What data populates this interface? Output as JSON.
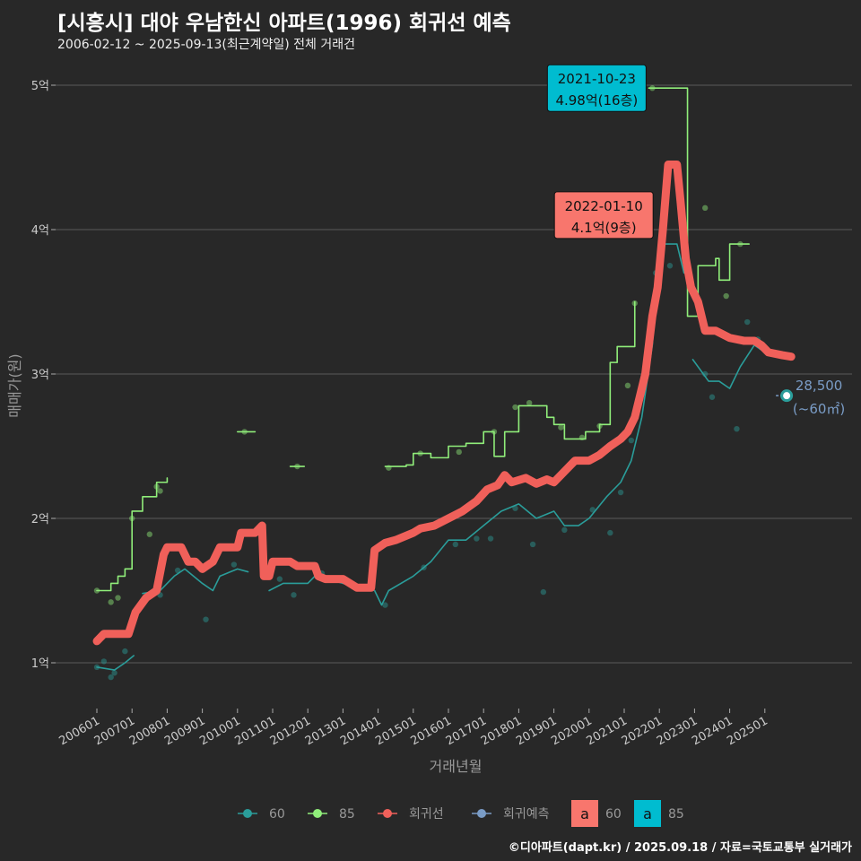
{
  "title": "[시흥시] 대야 우남한신 아파트(1996) 회귀선 예측",
  "subtitle": "2006-02-12 ~ 2025-09-13(최근계약일) 전체 거래건",
  "footer": "©디아파트(dapt.kr) / 2025.09.18 / 자료=국토교통부 실거래가",
  "colors": {
    "s60": "#2a9d9a",
    "s85": "#90ee7a",
    "reg": "#f0605a",
    "pred": "#7a9cc6",
    "box85": "#00bcd0",
    "box60": "#f8766d"
  },
  "chart_data": {
    "type": "line",
    "xlabel": "거래년월",
    "ylabel": "매매가(원)",
    "xlim": [
      2005.5,
      2026.4
    ],
    "ylim": [
      7000,
      54000
    ],
    "y_ticks": [
      {
        "v": 10000,
        "label": "1억"
      },
      {
        "v": 20000,
        "label": "2억"
      },
      {
        "v": 30000,
        "label": "3억"
      },
      {
        "v": 40000,
        "label": "4억"
      },
      {
        "v": 50000,
        "label": "5억"
      }
    ],
    "x_ticks": [
      {
        "v": 2006,
        "label": "200601"
      },
      {
        "v": 2007,
        "label": "200701"
      },
      {
        "v": 2008,
        "label": "200801"
      },
      {
        "v": 2009,
        "label": "200901"
      },
      {
        "v": 2010,
        "label": "201001"
      },
      {
        "v": 2011,
        "label": "201101"
      },
      {
        "v": 2012,
        "label": "201201"
      },
      {
        "v": 2013,
        "label": "201301"
      },
      {
        "v": 2014,
        "label": "201401"
      },
      {
        "v": 2015,
        "label": "201501"
      },
      {
        "v": 2016,
        "label": "201601"
      },
      {
        "v": 2017,
        "label": "201701"
      },
      {
        "v": 2018,
        "label": "201801"
      },
      {
        "v": 2019,
        "label": "201901"
      },
      {
        "v": 2020,
        "label": "202001"
      },
      {
        "v": 2021,
        "label": "202101"
      },
      {
        "v": 2022,
        "label": "202201"
      },
      {
        "v": 2023,
        "label": "202301"
      },
      {
        "v": 2024,
        "label": "202401"
      },
      {
        "v": 2025,
        "label": "202501"
      }
    ],
    "series": [
      {
        "name": "60",
        "key": "s60",
        "segments": [
          [
            [
              2006.0,
              9700
            ],
            [
              2006.5,
              9500
            ],
            [
              2006.8,
              10000
            ],
            [
              2007.05,
              10500
            ]
          ],
          [
            [
              2007.3,
              14800
            ],
            [
              2007.8,
              15000
            ],
            [
              2008.2,
              16000
            ],
            [
              2008.5,
              16500
            ],
            [
              2009.0,
              15500
            ],
            [
              2009.3,
              15000
            ],
            [
              2009.5,
              16000
            ],
            [
              2010.0,
              16500
            ],
            [
              2010.3,
              16300
            ]
          ],
          [
            [
              2010.9,
              15000
            ],
            [
              2011.3,
              15500
            ],
            [
              2012.0,
              15500
            ],
            [
              2012.2,
              16000
            ],
            [
              2013.0,
              15500
            ],
            [
              2013.9,
              15000
            ],
            [
              2014.1,
              14000
            ],
            [
              2014.3,
              15000
            ],
            [
              2015.0,
              16000
            ],
            [
              2015.5,
              17000
            ],
            [
              2016.0,
              18500
            ],
            [
              2016.5,
              18500
            ],
            [
              2017.0,
              19500
            ],
            [
              2017.5,
              20500
            ],
            [
              2018.0,
              21000
            ],
            [
              2018.5,
              20000
            ],
            [
              2019.0,
              20500
            ],
            [
              2019.3,
              19500
            ],
            [
              2019.7,
              19500
            ],
            [
              2020.0,
              20000
            ],
            [
              2020.5,
              21500
            ],
            [
              2020.9,
              22500
            ],
            [
              2021.2,
              24000
            ],
            [
              2021.5,
              27000
            ],
            [
              2021.8,
              32000
            ],
            [
              2022.0,
              39000
            ],
            [
              2022.5,
              39000
            ],
            [
              2022.7,
              37000
            ]
          ],
          [
            [
              2022.95,
              31000
            ],
            [
              2023.4,
              29500
            ],
            [
              2023.7,
              29500
            ],
            [
              2024.0,
              29000
            ],
            [
              2024.3,
              30500
            ],
            [
              2024.7,
              32000
            ],
            [
              2025.0,
              31500
            ]
          ]
        ]
      },
      {
        "name": "85",
        "key": "s85",
        "step": true,
        "segments": [
          [
            [
              2006.0,
              15000
            ],
            [
              2006.4,
              15500
            ],
            [
              2006.6,
              16000
            ],
            [
              2006.8,
              16500
            ],
            [
              2007.0,
              20500
            ],
            [
              2007.3,
              21500
            ],
            [
              2007.7,
              22500
            ],
            [
              2008.0,
              22800
            ]
          ],
          [
            [
              2010.0,
              26000
            ],
            [
              2010.5,
              26000
            ]
          ],
          [
            [
              2011.5,
              23600
            ],
            [
              2011.9,
              23600
            ]
          ],
          [
            [
              2014.2,
              23600
            ],
            [
              2014.8,
              23700
            ],
            [
              2015.0,
              24500
            ],
            [
              2015.5,
              24200
            ],
            [
              2016.0,
              25000
            ],
            [
              2016.5,
              25200
            ],
            [
              2017.0,
              26000
            ],
            [
              2017.3,
              24300
            ],
            [
              2017.6,
              26000
            ],
            [
              2018.0,
              27800
            ],
            [
              2018.8,
              27000
            ],
            [
              2019.0,
              26500
            ],
            [
              2019.3,
              25500
            ],
            [
              2019.9,
              26000
            ],
            [
              2020.3,
              26500
            ],
            [
              2020.6,
              30800
            ],
            [
              2020.8,
              31900
            ],
            [
              2021.3,
              35000
            ]
          ],
          [
            [
              2021.7,
              49800
            ],
            [
              2022.75,
              49800
            ],
            [
              2022.8,
              34000
            ],
            [
              2023.1,
              37500
            ],
            [
              2023.6,
              38000
            ],
            [
              2023.7,
              36500
            ],
            [
              2024.0,
              39000
            ],
            [
              2024.55,
              39000
            ]
          ]
        ]
      },
      {
        "name": "회귀선",
        "key": "reg",
        "segments": [
          [
            [
              2006.0,
              11500
            ],
            [
              2006.2,
              12000
            ],
            [
              2006.9,
              12000
            ],
            [
              2007.1,
              13500
            ],
            [
              2007.4,
              14500
            ],
            [
              2007.7,
              15000
            ],
            [
              2007.9,
              17500
            ],
            [
              2008.0,
              18000
            ],
            [
              2008.4,
              18000
            ],
            [
              2008.6,
              17000
            ],
            [
              2008.8,
              17000
            ],
            [
              2009.0,
              16500
            ],
            [
              2009.3,
              17000
            ],
            [
              2009.5,
              18000
            ],
            [
              2010.0,
              18000
            ],
            [
              2010.1,
              19000
            ],
            [
              2010.5,
              19000
            ],
            [
              2010.7,
              19500
            ],
            [
              2010.75,
              16000
            ],
            [
              2010.9,
              16000
            ],
            [
              2011.0,
              17000
            ],
            [
              2011.5,
              17000
            ],
            [
              2011.7,
              16700
            ],
            [
              2012.2,
              16700
            ],
            [
              2012.3,
              16000
            ],
            [
              2012.5,
              15800
            ],
            [
              2013.0,
              15800
            ],
            [
              2013.2,
              15500
            ],
            [
              2013.4,
              15200
            ],
            [
              2013.8,
              15200
            ],
            [
              2013.9,
              17800
            ],
            [
              2014.2,
              18300
            ],
            [
              2014.5,
              18500
            ],
            [
              2015.0,
              19000
            ],
            [
              2015.2,
              19300
            ],
            [
              2015.6,
              19500
            ],
            [
              2016.0,
              20000
            ],
            [
              2016.4,
              20500
            ],
            [
              2016.8,
              21200
            ],
            [
              2017.1,
              22000
            ],
            [
              2017.4,
              22300
            ],
            [
              2017.6,
              23000
            ],
            [
              2017.8,
              22500
            ],
            [
              2018.2,
              22800
            ],
            [
              2018.5,
              22400
            ],
            [
              2018.8,
              22700
            ],
            [
              2019.0,
              22500
            ],
            [
              2019.4,
              23500
            ],
            [
              2019.6,
              24000
            ],
            [
              2020.0,
              24000
            ],
            [
              2020.3,
              24400
            ],
            [
              2020.6,
              25000
            ],
            [
              2020.9,
              25500
            ],
            [
              2021.1,
              26000
            ],
            [
              2021.3,
              27000
            ],
            [
              2021.6,
              30000
            ],
            [
              2021.8,
              34000
            ],
            [
              2021.95,
              36000
            ],
            [
              2022.1,
              40000
            ],
            [
              2022.25,
              44500
            ],
            [
              2022.5,
              44500
            ],
            [
              2022.6,
              42000
            ],
            [
              2022.75,
              38000
            ],
            [
              2022.9,
              36000
            ],
            [
              2023.1,
              35000
            ],
            [
              2023.3,
              33000
            ],
            [
              2023.6,
              33000
            ],
            [
              2024.0,
              32500
            ],
            [
              2024.4,
              32300
            ],
            [
              2024.7,
              32300
            ],
            [
              2024.9,
              32000
            ],
            [
              2025.1,
              31500
            ],
            [
              2025.5,
              31300
            ],
            [
              2025.75,
              31200
            ]
          ]
        ]
      }
    ],
    "points": [
      {
        "key": "s60",
        "pts": [
          [
            2006.0,
            9700
          ],
          [
            2006.2,
            10100
          ],
          [
            2006.4,
            9000
          ],
          [
            2006.5,
            9300
          ],
          [
            2006.8,
            10800
          ],
          [
            2007.8,
            14700
          ],
          [
            2008.3,
            16400
          ],
          [
            2009.1,
            13000
          ],
          [
            2009.9,
            16800
          ],
          [
            2011.2,
            15800
          ],
          [
            2011.6,
            14700
          ],
          [
            2012.4,
            16200
          ],
          [
            2014.2,
            14000
          ],
          [
            2015.3,
            16600
          ],
          [
            2016.2,
            18200
          ],
          [
            2016.8,
            18600
          ],
          [
            2017.2,
            18600
          ],
          [
            2017.9,
            20700
          ],
          [
            2018.4,
            18200
          ],
          [
            2018.7,
            14900
          ],
          [
            2019.3,
            19200
          ],
          [
            2020.1,
            20600
          ],
          [
            2020.6,
            19000
          ],
          [
            2020.9,
            21800
          ],
          [
            2021.2,
            25400
          ],
          [
            2021.5,
            28600
          ],
          [
            2021.9,
            37000
          ],
          [
            2022.3,
            37500
          ],
          [
            2023.3,
            30000
          ],
          [
            2023.5,
            28400
          ],
          [
            2024.2,
            26200
          ],
          [
            2024.5,
            33600
          ],
          [
            2024.8,
            32400
          ]
        ]
      },
      {
        "key": "s85",
        "pts": [
          [
            2006.0,
            15000
          ],
          [
            2006.4,
            14200
          ],
          [
            2006.6,
            14500
          ],
          [
            2007.0,
            20000
          ],
          [
            2007.5,
            18900
          ],
          [
            2007.7,
            22200
          ],
          [
            2007.8,
            21900
          ],
          [
            2010.2,
            26000
          ],
          [
            2011.7,
            23600
          ],
          [
            2014.3,
            23500
          ],
          [
            2015.2,
            24500
          ],
          [
            2016.3,
            24600
          ],
          [
            2017.3,
            26000
          ],
          [
            2017.9,
            27700
          ],
          [
            2018.3,
            28000
          ],
          [
            2019.2,
            26300
          ],
          [
            2019.8,
            25600
          ],
          [
            2020.3,
            26400
          ],
          [
            2021.1,
            29200
          ],
          [
            2021.3,
            34900
          ],
          [
            2021.8,
            49800
          ],
          [
            2023.3,
            41500
          ],
          [
            2023.9,
            35400
          ],
          [
            2024.3,
            39000
          ]
        ]
      }
    ],
    "prediction": {
      "x": 2025.62,
      "y": 28500,
      "label": "28,500",
      "sublabel": "(~60㎡)"
    },
    "annotations": [
      {
        "key": "box85",
        "x": 2021.8,
        "y": 49800,
        "line1": "2021-10-23",
        "line2": "4.98억(16층)"
      },
      {
        "key": "box60",
        "x": 2022.0,
        "y": 41000,
        "line1": "2022-01-10",
        "line2": "4.1억(9층)"
      }
    ],
    "legend": {
      "items": [
        {
          "key": "s60",
          "label": "60"
        },
        {
          "key": "s85",
          "label": "85"
        },
        {
          "key": "reg",
          "label": "회귀선"
        },
        {
          "key": "pred",
          "label": "회귀예측"
        }
      ],
      "boxes": [
        {
          "key": "box60",
          "glyph": "a",
          "label": "60"
        },
        {
          "key": "box85",
          "glyph": "a",
          "label": "85"
        }
      ]
    }
  }
}
